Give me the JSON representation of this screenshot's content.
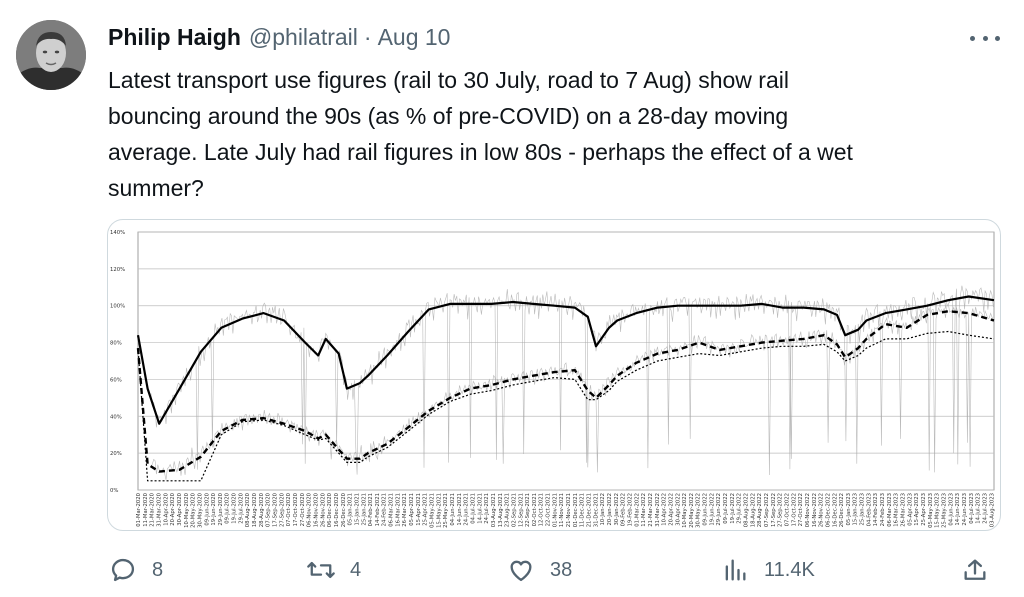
{
  "tweet": {
    "author": {
      "display_name": "Philip Haigh",
      "handle": "@philatrail"
    },
    "separator": "·",
    "date": "Aug 10",
    "text_lines": [
      "Latest transport use figures (rail to 30 July, road to 7 Aug) show rail",
      "bouncing around the 90s (as % of pre-COVID) on a 28-day moving",
      "average. Late July had rail figures in low 80s - perhaps the effect of a wet",
      "summer?"
    ],
    "actions": {
      "replies": "8",
      "retweets": "4",
      "likes": "38",
      "views": "11.4K"
    },
    "icons": {
      "more": "more-horizontal-icon",
      "reply": "reply-icon",
      "retweet": "retweet-icon",
      "like": "heart-icon",
      "views": "views-icon",
      "share": "share-icon"
    }
  },
  "chart_data": {
    "type": "line",
    "title": "",
    "xlabel": "",
    "ylabel": "",
    "ylim": [
      0,
      140
    ],
    "yticks": [
      "0%",
      "20%",
      "40%",
      "60%",
      "80%",
      "100%",
      "120%",
      "140%"
    ],
    "grid": true,
    "x": [
      "2020-03-01",
      "2020-03-15",
      "2020-04-01",
      "2020-05-01",
      "2020-06-01",
      "2020-07-01",
      "2020-08-01",
      "2020-09-01",
      "2020-10-01",
      "2020-11-01",
      "2020-11-20",
      "2020-12-01",
      "2020-12-20",
      "2021-01-01",
      "2021-01-20",
      "2021-02-01",
      "2021-03-01",
      "2021-04-01",
      "2021-05-01",
      "2021-06-01",
      "2021-07-01",
      "2021-08-01",
      "2021-09-01",
      "2021-10-01",
      "2021-11-01",
      "2021-12-01",
      "2021-12-20",
      "2022-01-01",
      "2022-01-20",
      "2022-02-01",
      "2022-03-01",
      "2022-04-01",
      "2022-05-01",
      "2022-06-01",
      "2022-07-01",
      "2022-08-01",
      "2022-09-01",
      "2022-10-01",
      "2022-11-01",
      "2022-12-01",
      "2022-12-20",
      "2023-01-01",
      "2023-01-20",
      "2023-02-01",
      "2023-03-01",
      "2023-04-01",
      "2023-05-01",
      "2023-06-01",
      "2023-07-01",
      "2023-08-07"
    ],
    "series": [
      {
        "values": [
          84,
          55,
          36,
          55,
          75,
          88,
          93,
          96,
          92,
          80,
          73,
          82,
          74,
          55,
          58,
          62,
          73,
          86,
          98,
          101,
          101,
          101,
          102,
          101,
          100,
          99,
          94,
          78,
          88,
          92,
          96,
          99,
          100,
          100,
          100,
          100,
          101,
          99,
          99,
          98,
          95,
          84,
          87,
          92,
          96,
          98,
          100,
          103,
          105,
          103
        ]
      },
      {
        "values": [
          77,
          14,
          10,
          11,
          18,
          32,
          38,
          39,
          36,
          32,
          28,
          30,
          22,
          17,
          17,
          20,
          25,
          34,
          43,
          50,
          55,
          57,
          60,
          62,
          64,
          65,
          54,
          50,
          57,
          62,
          69,
          74,
          76,
          80,
          76,
          78,
          80,
          81,
          82,
          84,
          79,
          72,
          77,
          82,
          90,
          88,
          95,
          97,
          96,
          92
        ]
      },
      {
        "values": [
          77,
          5,
          5,
          5,
          5,
          30,
          37,
          38,
          35,
          30,
          27,
          28,
          20,
          15,
          15,
          18,
          23,
          32,
          41,
          48,
          52,
          54,
          57,
          59,
          61,
          60,
          49,
          49,
          54,
          59,
          65,
          70,
          72,
          74,
          73,
          75,
          77,
          78,
          78,
          79,
          75,
          70,
          73,
          77,
          82,
          82,
          85,
          86,
          84,
          82
        ]
      }
    ]
  }
}
